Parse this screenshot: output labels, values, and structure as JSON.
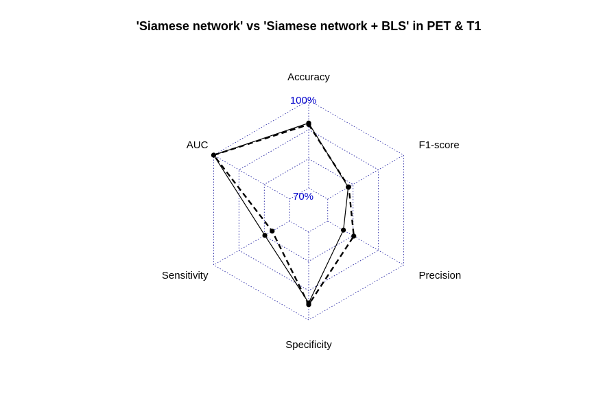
{
  "chart_data": {
    "type": "radar",
    "title": "'Siamese network' vs 'Siamese network + BLS' in PET & T1",
    "axes": [
      "Accuracy",
      "F1-score",
      "Precision",
      "Specificity",
      "Sensitivity",
      "AUC"
    ],
    "range": [
      70,
      100
    ],
    "grid_levels": 4,
    "grid_labels": {
      "min": "70%",
      "max": "100%"
    },
    "grid_color": "#3333aa",
    "series": [
      {
        "values": [
          92.2,
          78.1,
          76.2,
          94.2,
          79.8,
          100.0
        ],
        "line": "solid"
      },
      {
        "values": [
          91.7,
          78.3,
          80.3,
          94.8,
          76.9,
          100.0
        ],
        "line": "dashed"
      }
    ]
  }
}
